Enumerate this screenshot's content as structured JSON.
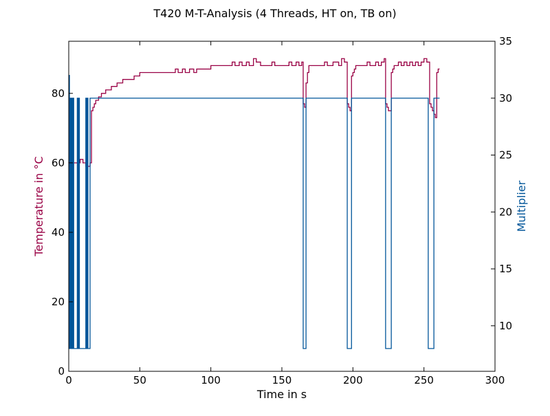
{
  "chart_data": {
    "type": "line",
    "title": "T420 M-T-Analysis (4 Threads, HT on, TB on)",
    "xlabel": "Time in s",
    "xlim": [
      0,
      300
    ],
    "xticks": [
      0,
      50,
      100,
      150,
      200,
      250,
      300
    ],
    "y_left": {
      "label": "Temperature in °C",
      "color": "#990044",
      "lim": [
        0,
        95
      ],
      "ticks": [
        0,
        20,
        40,
        60,
        80
      ]
    },
    "y_right": {
      "label": "Multiplier",
      "color": "#005599",
      "lim": [
        6,
        35
      ],
      "ticks": [
        10,
        15,
        20,
        25,
        30,
        35
      ]
    },
    "grid": false,
    "series": [
      {
        "axis": "left",
        "color": "#990044",
        "points": [
          [
            0,
            60
          ],
          [
            0.5,
            62
          ],
          [
            1,
            60
          ],
          [
            2,
            61
          ],
          [
            3,
            60
          ],
          [
            8,
            60
          ],
          [
            8,
            61
          ],
          [
            10,
            61
          ],
          [
            10,
            60
          ],
          [
            12,
            60
          ],
          [
            12,
            59
          ],
          [
            15,
            59
          ],
          [
            15,
            60
          ],
          [
            16,
            60
          ],
          [
            16,
            75
          ],
          [
            17,
            75
          ],
          [
            17,
            76
          ],
          [
            18,
            76
          ],
          [
            18,
            77
          ],
          [
            19,
            77
          ],
          [
            19,
            78
          ],
          [
            21,
            78
          ],
          [
            21,
            79
          ],
          [
            23,
            79
          ],
          [
            23,
            80
          ],
          [
            26,
            80
          ],
          [
            26,
            81
          ],
          [
            30,
            81
          ],
          [
            30,
            82
          ],
          [
            34,
            82
          ],
          [
            34,
            83
          ],
          [
            38,
            83
          ],
          [
            38,
            84
          ],
          [
            46,
            84
          ],
          [
            46,
            85
          ],
          [
            50,
            85
          ],
          [
            50,
            86
          ],
          [
            75,
            86
          ],
          [
            75,
            87
          ],
          [
            77,
            87
          ],
          [
            77,
            86
          ],
          [
            80,
            86
          ],
          [
            80,
            87
          ],
          [
            82,
            87
          ],
          [
            82,
            86
          ],
          [
            85,
            86
          ],
          [
            85,
            87
          ],
          [
            88,
            87
          ],
          [
            88,
            86
          ],
          [
            90,
            86
          ],
          [
            90,
            87
          ],
          [
            100,
            87
          ],
          [
            100,
            88
          ],
          [
            115,
            88
          ],
          [
            115,
            89
          ],
          [
            117,
            89
          ],
          [
            117,
            88
          ],
          [
            120,
            88
          ],
          [
            120,
            89
          ],
          [
            122,
            89
          ],
          [
            122,
            88
          ],
          [
            125,
            88
          ],
          [
            125,
            89
          ],
          [
            127,
            89
          ],
          [
            127,
            88
          ],
          [
            130,
            88
          ],
          [
            130,
            90
          ],
          [
            132,
            90
          ],
          [
            132,
            89
          ],
          [
            135,
            89
          ],
          [
            135,
            88
          ],
          [
            143,
            88
          ],
          [
            143,
            89
          ],
          [
            145,
            89
          ],
          [
            145,
            88
          ],
          [
            155,
            88
          ],
          [
            155,
            89
          ],
          [
            157,
            89
          ],
          [
            157,
            88
          ],
          [
            160,
            88
          ],
          [
            160,
            89
          ],
          [
            162,
            89
          ],
          [
            162,
            88
          ],
          [
            164,
            88
          ],
          [
            164,
            89
          ],
          [
            165,
            89
          ],
          [
            165,
            77
          ],
          [
            166,
            77
          ],
          [
            166,
            76
          ],
          [
            167,
            76
          ],
          [
            167,
            83
          ],
          [
            168,
            83
          ],
          [
            168,
            86
          ],
          [
            169,
            86
          ],
          [
            169,
            88
          ],
          [
            180,
            88
          ],
          [
            180,
            89
          ],
          [
            182,
            89
          ],
          [
            182,
            88
          ],
          [
            186,
            88
          ],
          [
            186,
            89
          ],
          [
            190,
            89
          ],
          [
            190,
            88
          ],
          [
            192,
            88
          ],
          [
            192,
            90
          ],
          [
            194,
            90
          ],
          [
            194,
            89
          ],
          [
            196,
            89
          ],
          [
            196,
            77
          ],
          [
            197,
            77
          ],
          [
            197,
            76
          ],
          [
            198,
            76
          ],
          [
            198,
            75
          ],
          [
            199,
            75
          ],
          [
            199,
            85
          ],
          [
            200,
            85
          ],
          [
            200,
            86
          ],
          [
            201,
            86
          ],
          [
            201,
            87
          ],
          [
            202,
            87
          ],
          [
            202,
            88
          ],
          [
            210,
            88
          ],
          [
            210,
            89
          ],
          [
            212,
            89
          ],
          [
            212,
            88
          ],
          [
            216,
            88
          ],
          [
            216,
            89
          ],
          [
            218,
            89
          ],
          [
            218,
            88
          ],
          [
            220,
            88
          ],
          [
            220,
            89
          ],
          [
            222,
            89
          ],
          [
            222,
            90
          ],
          [
            223,
            90
          ],
          [
            223,
            77
          ],
          [
            224,
            77
          ],
          [
            224,
            76
          ],
          [
            225,
            76
          ],
          [
            225,
            75
          ],
          [
            227,
            75
          ],
          [
            227,
            86
          ],
          [
            228,
            86
          ],
          [
            228,
            87
          ],
          [
            229,
            87
          ],
          [
            229,
            88
          ],
          [
            232,
            88
          ],
          [
            232,
            89
          ],
          [
            234,
            89
          ],
          [
            234,
            88
          ],
          [
            236,
            88
          ],
          [
            236,
            89
          ],
          [
            238,
            89
          ],
          [
            238,
            88
          ],
          [
            240,
            88
          ],
          [
            240,
            89
          ],
          [
            242,
            89
          ],
          [
            242,
            88
          ],
          [
            244,
            88
          ],
          [
            244,
            89
          ],
          [
            246,
            89
          ],
          [
            246,
            88
          ],
          [
            248,
            88
          ],
          [
            248,
            89
          ],
          [
            250,
            89
          ],
          [
            250,
            90
          ],
          [
            252,
            90
          ],
          [
            252,
            89
          ],
          [
            254,
            89
          ],
          [
            254,
            77
          ],
          [
            255,
            77
          ],
          [
            255,
            76
          ],
          [
            256,
            76
          ],
          [
            256,
            75
          ],
          [
            257,
            75
          ],
          [
            257,
            74
          ],
          [
            258,
            74
          ],
          [
            258,
            73
          ],
          [
            259,
            73
          ],
          [
            259,
            86
          ],
          [
            260,
            86
          ],
          [
            260,
            87
          ],
          [
            261,
            87
          ]
        ]
      },
      {
        "axis": "right",
        "color": "#005599",
        "points": [
          [
            0,
            32
          ],
          [
            0.5,
            32
          ],
          [
            0.5,
            8
          ],
          [
            1,
            8
          ],
          [
            1,
            30
          ],
          [
            1.5,
            30
          ],
          [
            1.5,
            8
          ],
          [
            2,
            8
          ],
          [
            2,
            30
          ],
          [
            2.5,
            30
          ],
          [
            2.5,
            8
          ],
          [
            3,
            8
          ],
          [
            3,
            30
          ],
          [
            3.5,
            30
          ],
          [
            3.5,
            8
          ],
          [
            6,
            8
          ],
          [
            6,
            30
          ],
          [
            6.5,
            30
          ],
          [
            6.5,
            8
          ],
          [
            7,
            8
          ],
          [
            7,
            30
          ],
          [
            7.5,
            30
          ],
          [
            7.5,
            8
          ],
          [
            12,
            8
          ],
          [
            12,
            30
          ],
          [
            12.5,
            30
          ],
          [
            12.5,
            8
          ],
          [
            13,
            8
          ],
          [
            13,
            30
          ],
          [
            13.5,
            30
          ],
          [
            13.5,
            8
          ],
          [
            15,
            8
          ],
          [
            15,
            30
          ],
          [
            165,
            30
          ],
          [
            165,
            8
          ],
          [
            167,
            8
          ],
          [
            167,
            30
          ],
          [
            196,
            30
          ],
          [
            196,
            8
          ],
          [
            199,
            8
          ],
          [
            199,
            30
          ],
          [
            223,
            30
          ],
          [
            223,
            8
          ],
          [
            227,
            8
          ],
          [
            227,
            30
          ],
          [
            253,
            30
          ],
          [
            253,
            8
          ],
          [
            257,
            8
          ],
          [
            257,
            30
          ],
          [
            261,
            30
          ]
        ]
      }
    ]
  }
}
